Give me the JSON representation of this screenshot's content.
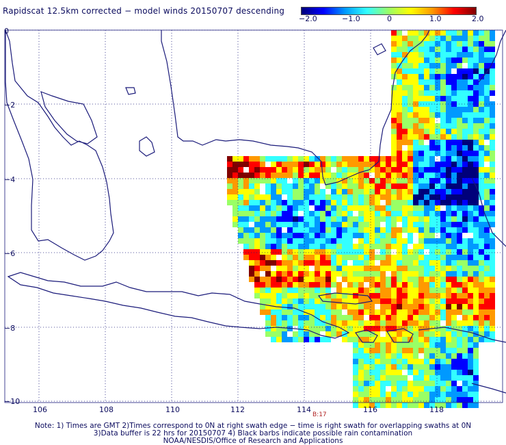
{
  "title": "Rapidscat 12.5km corrected − model winds 20150707 descending",
  "colorbar": {
    "ticks": [
      "−2.0",
      "−1.0",
      "0",
      "1.0",
      "2.0"
    ],
    "stops": [
      "#00007a",
      "#0000ff",
      "#0099ff",
      "#33ffff",
      "#99ff66",
      "#ffff00",
      "#ff9900",
      "#ff0000",
      "#800000"
    ]
  },
  "y_labels": [
    "0",
    "−2",
    "−4",
    "−6",
    "−8",
    "−10"
  ],
  "x_labels": [
    "106",
    "108",
    "110",
    "112",
    "114",
    "116",
    "118"
  ],
  "time_label": "B:17",
  "notes": [
    "Note: 1) Times are GMT 2)Times correspond to 0N at right swath edge − time is right swath for overlapping swaths at 0N",
    "3)Data buffer is 22 hrs for 20150707 4) Black barbs indicate possible rain contamination",
    "NOAA/NESDIS/Office of Research and Applications"
  ],
  "map": {
    "coastline_color": "#1a1a7a",
    "grid_color": "#1a1a7a",
    "lon_range": [
      105,
      119.8
    ],
    "lat_range": [
      0,
      -10
    ]
  }
}
